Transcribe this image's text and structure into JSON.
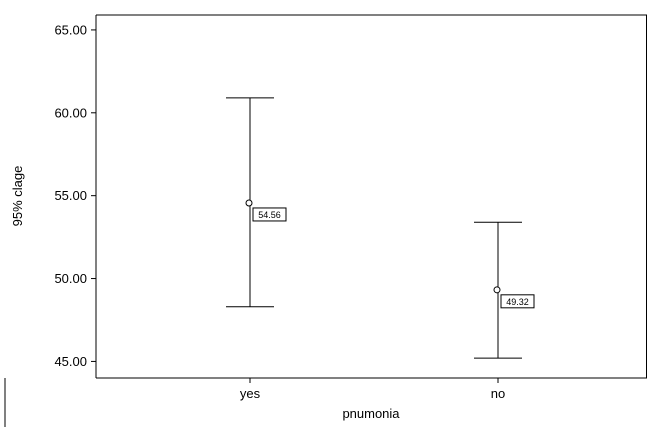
{
  "chart_data": {
    "type": "errorbar",
    "title": "",
    "xlabel": "pnumonia",
    "ylabel": "95% clage",
    "categories": [
      "yes",
      "no"
    ],
    "means": [
      54.56,
      49.32
    ],
    "lower": [
      48.3,
      45.2
    ],
    "upper": [
      60.9,
      53.4
    ],
    "mean_labels": [
      "54.56",
      "49.32"
    ],
    "ylim": [
      44.0,
      65.9
    ],
    "yticks": [
      45.0,
      50.0,
      55.0,
      60.0,
      65.0
    ],
    "ytick_labels": [
      "45.00",
      "50.00",
      "55.00",
      "60.00",
      "65.00"
    ],
    "grid": false,
    "legend": "none"
  }
}
